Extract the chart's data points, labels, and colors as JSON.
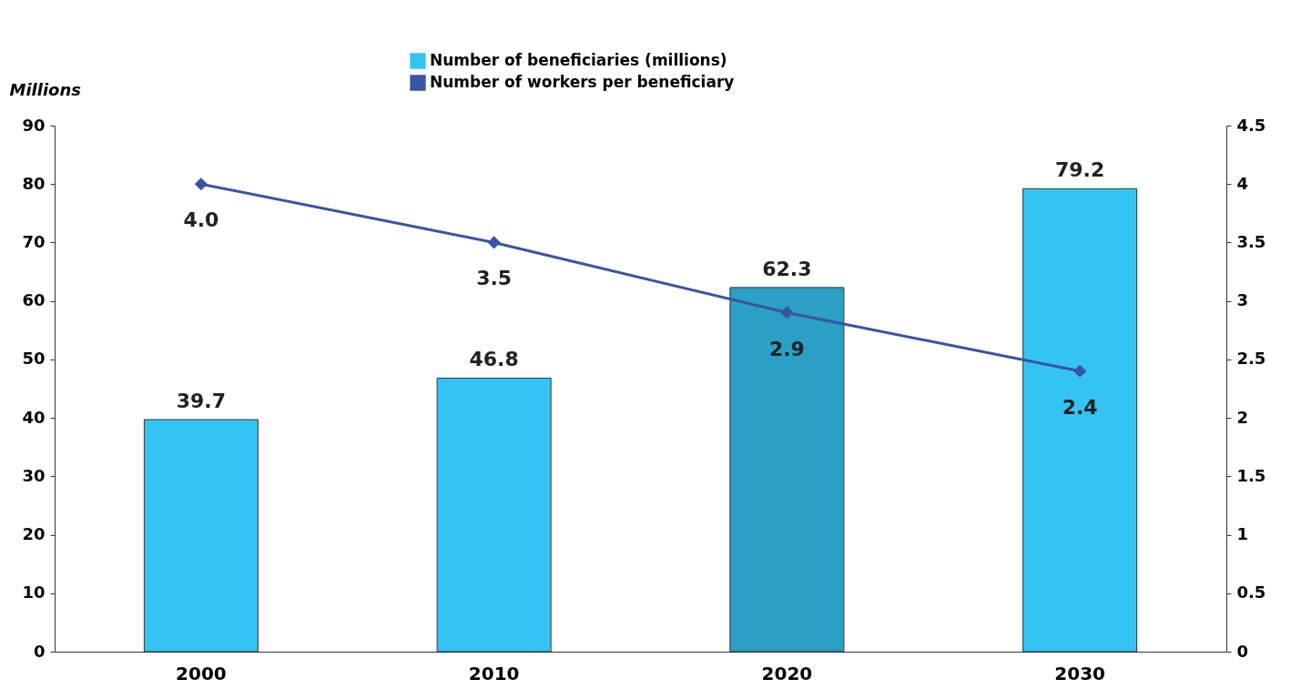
{
  "chart_data": {
    "type": "bar",
    "ylabel": "Millions",
    "categories": [
      "2000",
      "2010",
      "2020",
      "2030"
    ],
    "series": [
      {
        "name": "Number of beneficiaries (millions)",
        "color": "#33c4f4",
        "colors": [
          "#33c4f4",
          "#33c4f4",
          "#2aa0c4",
          "#33c4f4"
        ],
        "values": [
          39.7,
          46.8,
          62.3,
          79.2
        ]
      },
      {
        "name": "Number of workers per beneficiary",
        "type": "line",
        "axis": "y2",
        "color": "#3a53a4",
        "values": [
          4.0,
          3.5,
          2.9,
          2.4
        ],
        "value_labels": [
          "4.0",
          "3.5",
          "2.9",
          "2.4"
        ]
      }
    ],
    "ylim": [
      0,
      90
    ],
    "yticks": [
      0,
      10,
      20,
      30,
      40,
      50,
      60,
      70,
      80,
      90
    ],
    "y2lim": [
      0,
      4.5
    ],
    "y2ticks": [
      0,
      0.5,
      1,
      1.5,
      2,
      2.5,
      3,
      3.5,
      4,
      4.5
    ],
    "data_labels": true,
    "legend": "top",
    "grid": false,
    "marker": "diamond",
    "line_style": "solid"
  }
}
